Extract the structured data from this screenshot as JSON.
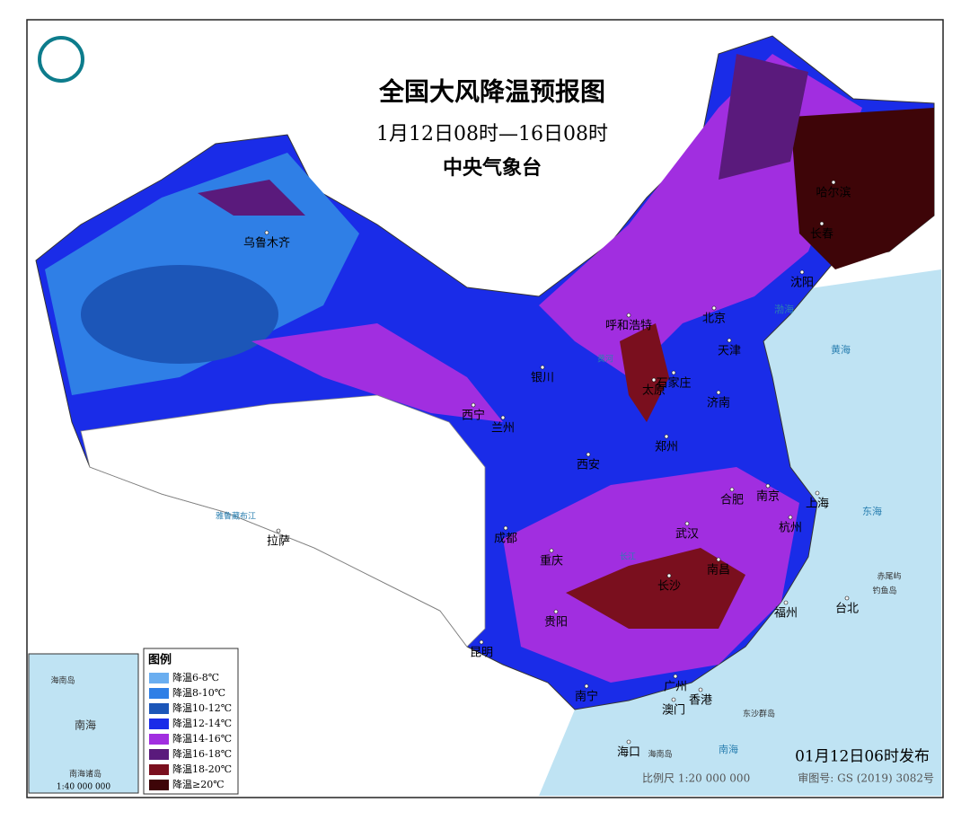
{
  "header": {
    "title": "全国大风降温预报图",
    "period": "1月12日08时—16日08时",
    "issuer": "中央气象台"
  },
  "cities": [
    "乌鲁木齐",
    "呼和浩特",
    "北京",
    "天津",
    "石家庄",
    "太原",
    "济南",
    "银川",
    "西宁",
    "兰州",
    "西安",
    "郑州",
    "合肥",
    "南京",
    "上海",
    "杭州",
    "武汉",
    "南昌",
    "长沙",
    "成都",
    "重庆",
    "贵阳",
    "昆明",
    "拉萨",
    "南宁",
    "广州",
    "香港",
    "澳门",
    "海口",
    "福州",
    "台北",
    "哈尔滨",
    "长春",
    "沈阳"
  ],
  "seas": [
    "渤海",
    "黄海",
    "东海",
    "南海"
  ],
  "islands": [
    "钓鱼岛",
    "赤尾屿",
    "东沙群岛",
    "海南岛"
  ],
  "rivers": [
    "雅鲁藏布江",
    "黄河",
    "长江"
  ],
  "legend": {
    "title": "图例",
    "items": [
      {
        "label": "降温6-8℃",
        "color": "#6aaef0"
      },
      {
        "label": "降温8-10℃",
        "color": "#2f7fe6"
      },
      {
        "label": "降温10-12℃",
        "color": "#1c56b8"
      },
      {
        "label": "降温12-14℃",
        "color": "#1a2ce8"
      },
      {
        "label": "降温14-16℃",
        "color": "#a12ee0"
      },
      {
        "label": "降温16-18℃",
        "color": "#5a1a7c"
      },
      {
        "label": "降温18-20℃",
        "color": "#7a0f1e"
      },
      {
        "label": "降温≥20℃",
        "color": "#3e0508"
      }
    ]
  },
  "inset": {
    "labels": [
      "海南岛",
      "南海",
      "南海诸岛"
    ],
    "scale": "1:40 000 000"
  },
  "footer": {
    "issued": "01月12日06时发布",
    "scale": "比例尺 1:20 000 000",
    "review": "审图号: GS (2019) 3082号"
  }
}
